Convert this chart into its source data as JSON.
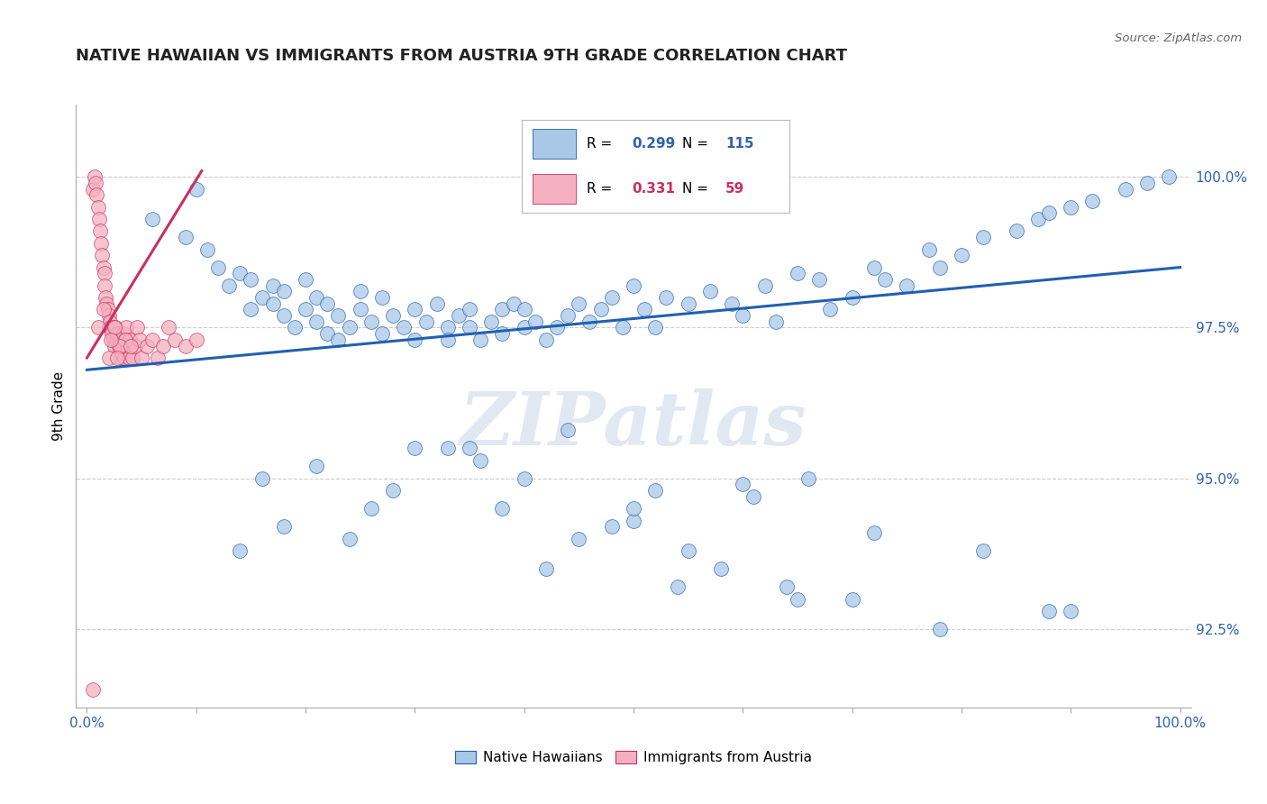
{
  "title": "NATIVE HAWAIIAN VS IMMIGRANTS FROM AUSTRIA 9TH GRADE CORRELATION CHART",
  "source": "Source: ZipAtlas.com",
  "ylabel": "9th Grade",
  "y_ticks": [
    92.5,
    95.0,
    97.5,
    100.0
  ],
  "y_tick_labels": [
    "92.5%",
    "95.0%",
    "97.5%",
    "100.0%"
  ],
  "x_ticks": [
    0.0,
    0.1,
    0.2,
    0.3,
    0.4,
    0.5,
    0.6,
    0.7,
    0.8,
    0.9,
    1.0
  ],
  "x_tick_labels": [
    "0.0%",
    "",
    "",
    "",
    "",
    "",
    "",
    "",
    "",
    "",
    "100.0%"
  ],
  "legend_R_blue": "0.299",
  "legend_N_blue": "115",
  "legend_R_pink": "0.331",
  "legend_N_pink": "59",
  "blue_scatter_x": [
    0.02,
    0.06,
    0.09,
    0.1,
    0.11,
    0.12,
    0.13,
    0.14,
    0.15,
    0.15,
    0.16,
    0.17,
    0.17,
    0.18,
    0.18,
    0.19,
    0.2,
    0.2,
    0.21,
    0.21,
    0.22,
    0.22,
    0.23,
    0.23,
    0.24,
    0.25,
    0.25,
    0.26,
    0.27,
    0.27,
    0.28,
    0.29,
    0.3,
    0.3,
    0.31,
    0.32,
    0.33,
    0.33,
    0.34,
    0.35,
    0.35,
    0.36,
    0.37,
    0.38,
    0.38,
    0.39,
    0.4,
    0.4,
    0.41,
    0.42,
    0.43,
    0.44,
    0.45,
    0.46,
    0.47,
    0.48,
    0.49,
    0.5,
    0.51,
    0.52,
    0.53,
    0.55,
    0.57,
    0.59,
    0.6,
    0.62,
    0.63,
    0.65,
    0.67,
    0.68,
    0.7,
    0.72,
    0.73,
    0.75,
    0.77,
    0.78,
    0.8,
    0.82,
    0.85,
    0.87,
    0.88,
    0.9,
    0.92,
    0.95,
    0.97,
    0.99,
    0.16,
    0.21,
    0.28,
    0.33,
    0.38,
    0.44,
    0.5,
    0.55,
    0.61,
    0.24,
    0.36,
    0.42,
    0.48,
    0.54,
    0.6,
    0.66,
    0.72,
    0.82,
    0.9,
    0.3,
    0.45,
    0.58,
    0.7,
    0.14,
    0.26,
    0.4,
    0.52,
    0.64,
    0.78,
    0.88,
    0.18,
    0.35,
    0.5,
    0.65
  ],
  "blue_scatter_y": [
    97.5,
    99.3,
    99.0,
    99.8,
    98.8,
    98.5,
    98.2,
    98.4,
    98.3,
    97.8,
    98.0,
    98.2,
    97.9,
    97.7,
    98.1,
    97.5,
    97.8,
    98.3,
    97.6,
    98.0,
    97.4,
    97.9,
    97.3,
    97.7,
    97.5,
    97.8,
    98.1,
    97.6,
    97.4,
    98.0,
    97.7,
    97.5,
    97.3,
    97.8,
    97.6,
    97.9,
    97.5,
    97.3,
    97.7,
    97.5,
    97.8,
    97.3,
    97.6,
    97.8,
    97.4,
    97.9,
    97.5,
    97.8,
    97.6,
    97.3,
    97.5,
    97.7,
    97.9,
    97.6,
    97.8,
    98.0,
    97.5,
    98.2,
    97.8,
    97.5,
    98.0,
    97.9,
    98.1,
    97.9,
    97.7,
    98.2,
    97.6,
    98.4,
    98.3,
    97.8,
    98.0,
    98.5,
    98.3,
    98.2,
    98.8,
    98.5,
    98.7,
    99.0,
    99.1,
    99.3,
    99.4,
    99.5,
    99.6,
    99.8,
    99.9,
    100.0,
    95.0,
    95.2,
    94.8,
    95.5,
    94.5,
    95.8,
    94.3,
    93.8,
    94.7,
    94.0,
    95.3,
    93.5,
    94.2,
    93.2,
    94.9,
    95.0,
    94.1,
    93.8,
    92.8,
    95.5,
    94.0,
    93.5,
    93.0,
    93.8,
    94.5,
    95.0,
    94.8,
    93.2,
    92.5,
    92.8,
    94.2,
    95.5,
    94.5,
    93.0
  ],
  "pink_scatter_x": [
    0.005,
    0.007,
    0.008,
    0.009,
    0.01,
    0.011,
    0.012,
    0.013,
    0.014,
    0.015,
    0.016,
    0.016,
    0.017,
    0.018,
    0.019,
    0.02,
    0.021,
    0.022,
    0.023,
    0.024,
    0.025,
    0.026,
    0.027,
    0.028,
    0.029,
    0.03,
    0.031,
    0.032,
    0.033,
    0.034,
    0.035,
    0.036,
    0.037,
    0.038,
    0.039,
    0.04,
    0.042,
    0.044,
    0.046,
    0.048,
    0.05,
    0.055,
    0.06,
    0.065,
    0.07,
    0.075,
    0.08,
    0.09,
    0.1,
    0.015,
    0.025,
    0.035,
    0.02,
    0.03,
    0.01,
    0.022,
    0.028,
    0.04,
    0.005
  ],
  "pink_scatter_y": [
    99.8,
    100.0,
    99.9,
    99.7,
    99.5,
    99.3,
    99.1,
    98.9,
    98.7,
    98.5,
    98.4,
    98.2,
    98.0,
    97.9,
    97.8,
    97.7,
    97.6,
    97.5,
    97.4,
    97.3,
    97.2,
    97.5,
    97.3,
    97.4,
    97.2,
    97.3,
    97.0,
    97.2,
    97.4,
    97.0,
    97.3,
    97.5,
    97.2,
    97.0,
    97.3,
    97.2,
    97.0,
    97.2,
    97.5,
    97.3,
    97.0,
    97.2,
    97.3,
    97.0,
    97.2,
    97.5,
    97.3,
    97.2,
    97.3,
    97.8,
    97.5,
    97.3,
    97.0,
    97.2,
    97.5,
    97.3,
    97.0,
    97.2,
    91.5
  ],
  "blue_line_x": [
    0.0,
    1.0
  ],
  "blue_line_y": [
    96.8,
    98.5
  ],
  "pink_line_x": [
    0.0,
    0.105
  ],
  "pink_line_y": [
    97.0,
    100.1
  ],
  "blue_color": "#a8c8e8",
  "pink_color": "#f4b0c0",
  "blue_line_color": "#2060b0",
  "pink_line_color": "#c83060",
  "grid_color": "#cccccc",
  "watermark_text": "ZIPatlas",
  "watermark_color": "#d0dae8",
  "title_fontsize": 13,
  "tick_fontsize": 11,
  "ylabel_fontsize": 11
}
